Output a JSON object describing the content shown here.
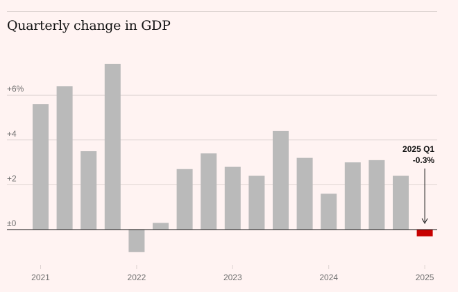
{
  "chart_data": {
    "type": "bar",
    "title": "Quarterly change in GDP",
    "categories": [
      "2021 Q1",
      "2021 Q2",
      "2021 Q3",
      "2021 Q4",
      "2022 Q1",
      "2022 Q2",
      "2022 Q3",
      "2022 Q4",
      "2023 Q1",
      "2023 Q2",
      "2023 Q3",
      "2023 Q4",
      "2024 Q1",
      "2024 Q2",
      "2024 Q3",
      "2024 Q4",
      "2025 Q1"
    ],
    "values": [
      5.6,
      6.4,
      3.5,
      7.4,
      -1.0,
      0.3,
      2.7,
      3.4,
      2.8,
      2.4,
      4.4,
      3.2,
      1.6,
      3.0,
      3.1,
      2.4,
      -0.3
    ],
    "ylim": [
      -1.4,
      7.6
    ],
    "y_ticks": [
      {
        "value": 0,
        "label": "±0"
      },
      {
        "value": 2,
        "label": "+2"
      },
      {
        "value": 4,
        "label": "+4"
      },
      {
        "value": 6,
        "label": "+6%"
      }
    ],
    "x_ticks": [
      "2021",
      "2022",
      "2023",
      "2024",
      "2025"
    ],
    "colors": {
      "bar": "#bababa",
      "highlight": "#c70000",
      "grid": "#ddd3d1",
      "zero": "#121212"
    },
    "highlight_index": 16,
    "annotation": {
      "line1": "2025 Q1",
      "line2": "-0.3%"
    },
    "grid": true
  }
}
